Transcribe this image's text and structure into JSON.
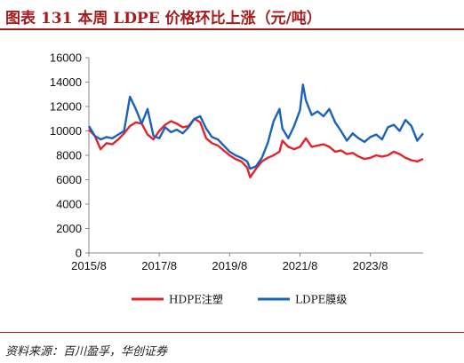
{
  "title": "图表 131   本周 LDPE 价格环比上涨（元/吨）",
  "source": "资料来源：百川盈孚，华创证券",
  "chart_data": {
    "type": "line",
    "title": "图表 131   本周 LDPE 价格环比上涨（元/吨）",
    "xlabel": "",
    "ylabel": "",
    "x_ticks": [
      "2015/8",
      "2017/8",
      "2019/8",
      "2021/8",
      "2023/8"
    ],
    "y_ticks": [
      0,
      2000,
      4000,
      6000,
      8000,
      10000,
      12000,
      14000,
      16000
    ],
    "ylim": [
      0,
      16000
    ],
    "xlim": [
      "2015/8",
      "2025/2"
    ],
    "grid": false,
    "legend": "bottom",
    "series": [
      {
        "name": "HDPE注塑",
        "color": "#e3232b",
        "points": [
          [
            "2015/8",
            10100
          ],
          [
            "2015/10",
            9600
          ],
          [
            "2015/12",
            8500
          ],
          [
            "2016/2",
            9000
          ],
          [
            "2016/4",
            8900
          ],
          [
            "2016/6",
            9300
          ],
          [
            "2016/8",
            9800
          ],
          [
            "2016/10",
            10400
          ],
          [
            "2016/12",
            10700
          ],
          [
            "2017/2",
            10600
          ],
          [
            "2017/4",
            9700
          ],
          [
            "2017/6",
            9300
          ],
          [
            "2017/8",
            10000
          ],
          [
            "2017/10",
            10500
          ],
          [
            "2017/12",
            10800
          ],
          [
            "2018/2",
            10600
          ],
          [
            "2018/4",
            10300
          ],
          [
            "2018/6",
            10400
          ],
          [
            "2018/8",
            11000
          ],
          [
            "2018/10",
            10700
          ],
          [
            "2018/12",
            9400
          ],
          [
            "2019/2",
            9000
          ],
          [
            "2019/4",
            8800
          ],
          [
            "2019/6",
            8400
          ],
          [
            "2019/8",
            8000
          ],
          [
            "2019/10",
            7700
          ],
          [
            "2019/12",
            7500
          ],
          [
            "2020/2",
            7000
          ],
          [
            "2020/3",
            6200
          ],
          [
            "2020/5",
            6900
          ],
          [
            "2020/7",
            7500
          ],
          [
            "2020/9",
            7800
          ],
          [
            "2020/11",
            8000
          ],
          [
            "2021/1",
            8300
          ],
          [
            "2021/2",
            9200
          ],
          [
            "2021/4",
            8700
          ],
          [
            "2021/6",
            8500
          ],
          [
            "2021/8",
            8700
          ],
          [
            "2021/10",
            9400
          ],
          [
            "2021/12",
            8700
          ],
          [
            "2022/2",
            8800
          ],
          [
            "2022/4",
            8900
          ],
          [
            "2022/6",
            8700
          ],
          [
            "2022/8",
            8300
          ],
          [
            "2022/10",
            8400
          ],
          [
            "2022/12",
            8100
          ],
          [
            "2023/2",
            8200
          ],
          [
            "2023/4",
            7900
          ],
          [
            "2023/6",
            7700
          ],
          [
            "2023/8",
            7800
          ],
          [
            "2023/10",
            8000
          ],
          [
            "2023/12",
            7900
          ],
          [
            "2024/2",
            8000
          ],
          [
            "2024/4",
            8300
          ],
          [
            "2024/6",
            8100
          ],
          [
            "2024/8",
            7800
          ],
          [
            "2024/10",
            7600
          ],
          [
            "2024/12",
            7500
          ],
          [
            "2025/2",
            7700
          ]
        ]
      },
      {
        "name": "LDPE膜级",
        "color": "#1a63b8",
        "points": [
          [
            "2015/8",
            10400
          ],
          [
            "2015/10",
            9600
          ],
          [
            "2015/12",
            9300
          ],
          [
            "2016/2",
            9500
          ],
          [
            "2016/4",
            9400
          ],
          [
            "2016/6",
            9700
          ],
          [
            "2016/8",
            10000
          ],
          [
            "2016/10",
            12800
          ],
          [
            "2016/12",
            11800
          ],
          [
            "2017/2",
            10600
          ],
          [
            "2017/4",
            11800
          ],
          [
            "2017/6",
            9600
          ],
          [
            "2017/8",
            9400
          ],
          [
            "2017/10",
            10300
          ],
          [
            "2017/12",
            9900
          ],
          [
            "2018/2",
            10100
          ],
          [
            "2018/4",
            9800
          ],
          [
            "2018/6",
            10300
          ],
          [
            "2018/8",
            11000
          ],
          [
            "2018/10",
            11200
          ],
          [
            "2018/12",
            10200
          ],
          [
            "2019/2",
            9500
          ],
          [
            "2019/4",
            9300
          ],
          [
            "2019/6",
            8800
          ],
          [
            "2019/8",
            8300
          ],
          [
            "2019/10",
            8000
          ],
          [
            "2019/12",
            7800
          ],
          [
            "2020/2",
            7500
          ],
          [
            "2020/3",
            6900
          ],
          [
            "2020/5",
            7100
          ],
          [
            "2020/7",
            7800
          ],
          [
            "2020/9",
            9000
          ],
          [
            "2020/11",
            10800
          ],
          [
            "2021/1",
            11800
          ],
          [
            "2021/2",
            10200
          ],
          [
            "2021/4",
            9400
          ],
          [
            "2021/6",
            10400
          ],
          [
            "2021/8",
            11700
          ],
          [
            "2021/9",
            13800
          ],
          [
            "2021/10",
            12500
          ],
          [
            "2021/12",
            11300
          ],
          [
            "2022/2",
            11600
          ],
          [
            "2022/4",
            11200
          ],
          [
            "2022/6",
            11800
          ],
          [
            "2022/8",
            10700
          ],
          [
            "2022/10",
            10000
          ],
          [
            "2022/12",
            9200
          ],
          [
            "2023/2",
            9800
          ],
          [
            "2023/4",
            9400
          ],
          [
            "2023/6",
            9100
          ],
          [
            "2023/8",
            9500
          ],
          [
            "2023/10",
            9700
          ],
          [
            "2023/12",
            9300
          ],
          [
            "2024/2",
            10300
          ],
          [
            "2024/4",
            10500
          ],
          [
            "2024/6",
            10000
          ],
          [
            "2024/8",
            10900
          ],
          [
            "2024/10",
            10400
          ],
          [
            "2024/12",
            9200
          ],
          [
            "2025/2",
            9800
          ]
        ]
      }
    ]
  }
}
